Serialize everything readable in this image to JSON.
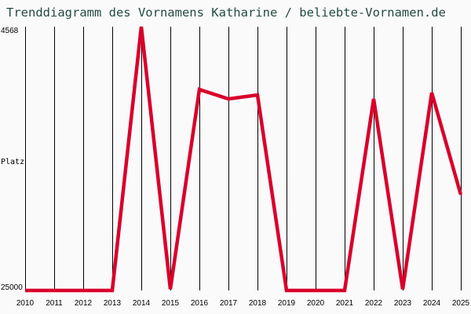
{
  "header": {
    "title": "Trenddiagramm des Vornamens Katharine / beliebte-Vornamen.de"
  },
  "colors": {
    "background": "#fafafa",
    "title": "#254a44",
    "line": "#d9002b",
    "grid": "#000000"
  },
  "chart_data": {
    "type": "line",
    "title": "Trenddiagramm des Vornamens Katharine / beliebte-Vornamen.de",
    "xlabel": "",
    "ylabel": "Platz",
    "y_inverted": true,
    "ylim": [
      25000,
      4568
    ],
    "y_ticks": [
      "4568",
      "Platz",
      "25000"
    ],
    "grid": {
      "vertical": true,
      "horizontal": false
    },
    "categories": [
      "2010",
      "2011",
      "2012",
      "2013",
      "2014",
      "2015",
      "2016",
      "2017",
      "2018",
      "2019",
      "2020",
      "2021",
      "2022",
      "2023",
      "2024",
      "2025"
    ],
    "series": [
      {
        "name": "Katharine",
        "values": [
          25000,
          25000,
          25000,
          25000,
          4568,
          24900,
          9430,
          10160,
          9860,
          25000,
          25000,
          25000,
          10160,
          24900,
          9680,
          17580
        ]
      }
    ]
  }
}
